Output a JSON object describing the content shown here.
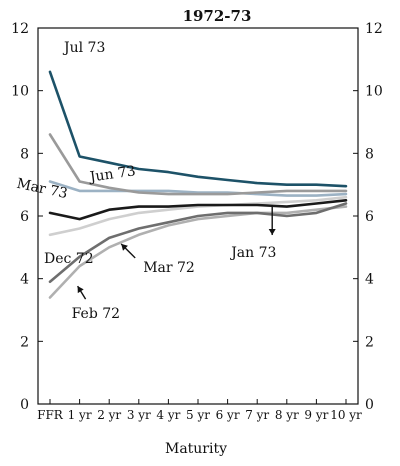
{
  "chart_data": {
    "type": "line",
    "title": "1972-73",
    "xlabel": "Maturity",
    "ylabel": "",
    "categories": [
      "FFR",
      "1 yr",
      "2 yr",
      "3 yr",
      "4 yr",
      "5 yr",
      "6 yr",
      "7 yr",
      "8 yr",
      "9 yr",
      "10 yr"
    ],
    "ylim": [
      0,
      12
    ],
    "yticks": [
      0,
      2,
      4,
      6,
      8,
      10,
      12
    ],
    "right_yticks": [
      "2",
      "4",
      "6",
      "8",
      "10",
      "12"
    ],
    "right_zero_label": "0",
    "grid": false,
    "legend": "none",
    "series": [
      {
        "name": "Feb 72",
        "color": "#b0b0b0",
        "values": [
          3.4,
          4.4,
          5.0,
          5.4,
          5.7,
          5.9,
          6.0,
          6.1,
          6.1,
          6.2,
          6.3
        ]
      },
      {
        "name": "Mar 72",
        "color": "#6e6e6e",
        "values": [
          3.9,
          4.7,
          5.3,
          5.6,
          5.8,
          6.0,
          6.1,
          6.1,
          6.0,
          6.1,
          6.4
        ]
      },
      {
        "name": "Dec 72",
        "color": "#cfcfcf",
        "values": [
          5.4,
          5.6,
          5.9,
          6.1,
          6.2,
          6.3,
          6.35,
          6.4,
          6.45,
          6.5,
          6.6
        ]
      },
      {
        "name": "Jan 73",
        "color": "#1a1a1a",
        "values": [
          6.1,
          5.9,
          6.2,
          6.3,
          6.3,
          6.35,
          6.35,
          6.35,
          6.3,
          6.4,
          6.5
        ]
      },
      {
        "name": "Mar 73",
        "color": "#9cb2c4",
        "values": [
          7.1,
          6.8,
          6.8,
          6.8,
          6.8,
          6.75,
          6.75,
          6.7,
          6.65,
          6.65,
          6.7
        ]
      },
      {
        "name": "Jun 73",
        "color": "#9a9a9a",
        "values": [
          8.6,
          7.1,
          6.9,
          6.75,
          6.7,
          6.7,
          6.7,
          6.75,
          6.8,
          6.8,
          6.8
        ]
      },
      {
        "name": "Jul 73",
        "color": "#1d5268",
        "values": [
          10.6,
          7.9,
          7.7,
          7.5,
          7.4,
          7.25,
          7.15,
          7.05,
          7.0,
          7.0,
          6.95
        ]
      }
    ],
    "annotations": [
      {
        "series": "Jul 73",
        "text": "Jul 73",
        "x": "FFR",
        "y": 10.6
      },
      {
        "series": "Jun 73",
        "text": "Jun 73",
        "x": "1 yr",
        "y": 7.1
      },
      {
        "series": "Mar 73",
        "text": "Mar 73",
        "x": "FFR",
        "y": 7.1
      },
      {
        "series": "Dec 72",
        "text": "Dec 72",
        "x": "FFR",
        "y": 5.4
      },
      {
        "series": "Mar 72",
        "text": "Mar 72",
        "x": "2 yr",
        "y": 5.3
      },
      {
        "series": "Feb 72",
        "text": "Feb 72",
        "x": "1 yr",
        "y": 4.4
      },
      {
        "series": "Jan 73",
        "text": "Jan 73",
        "x": "7 yr",
        "y": 6.35
      }
    ]
  }
}
